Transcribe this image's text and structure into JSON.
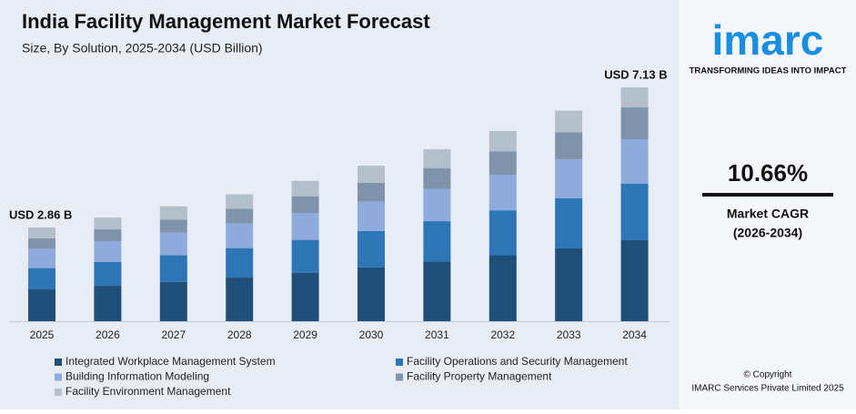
{
  "chart_data": {
    "type": "stacked_bar",
    "title": "India Facility Management Market Forecast",
    "subtitle": "Size, By Solution, 2025-2034 (USD Billion)",
    "categories": [
      "2025",
      "2026",
      "2027",
      "2028",
      "2029",
      "2030",
      "2031",
      "2032",
      "2033",
      "2034"
    ],
    "series": [
      {
        "name": "Integrated Workplace Management System",
        "color": "#1f4e79",
        "values": [
          0.97,
          1.08,
          1.2,
          1.33,
          1.48,
          1.64,
          1.82,
          2.01,
          2.22,
          2.47
        ]
      },
      {
        "name": "Facility Operations and Security Management",
        "color": "#2e75b6",
        "values": [
          0.65,
          0.73,
          0.81,
          0.9,
          1.0,
          1.11,
          1.23,
          1.37,
          1.53,
          1.72
        ]
      },
      {
        "name": "Building Information Modeling",
        "color": "#8faadc",
        "values": [
          0.59,
          0.63,
          0.69,
          0.75,
          0.82,
          0.9,
          0.98,
          1.08,
          1.19,
          1.36
        ]
      },
      {
        "name": "Facility Property Management",
        "color": "#7f93ab",
        "values": [
          0.32,
          0.36,
          0.4,
          0.45,
          0.51,
          0.57,
          0.64,
          0.72,
          0.82,
          0.97
        ]
      },
      {
        "name": "Facility Environment Management",
        "color": "#b4bfcc",
        "values": [
          0.33,
          0.36,
          0.4,
          0.44,
          0.47,
          0.52,
          0.57,
          0.62,
          0.66,
          0.61
        ]
      }
    ],
    "annotations": [
      "USD 2.86 B",
      "USD 7.13 B"
    ]
  },
  "sidebar": {
    "logo": "imarc",
    "tagline": "TRANSFORMING IDEAS INTO IMPACT",
    "cagr": "10.66%",
    "cagr_label": "Market CAGR",
    "cagr_period": "(2026-2034)",
    "copyright": "© Copyright",
    "company": "IMARC Services Private Limited 2025"
  }
}
